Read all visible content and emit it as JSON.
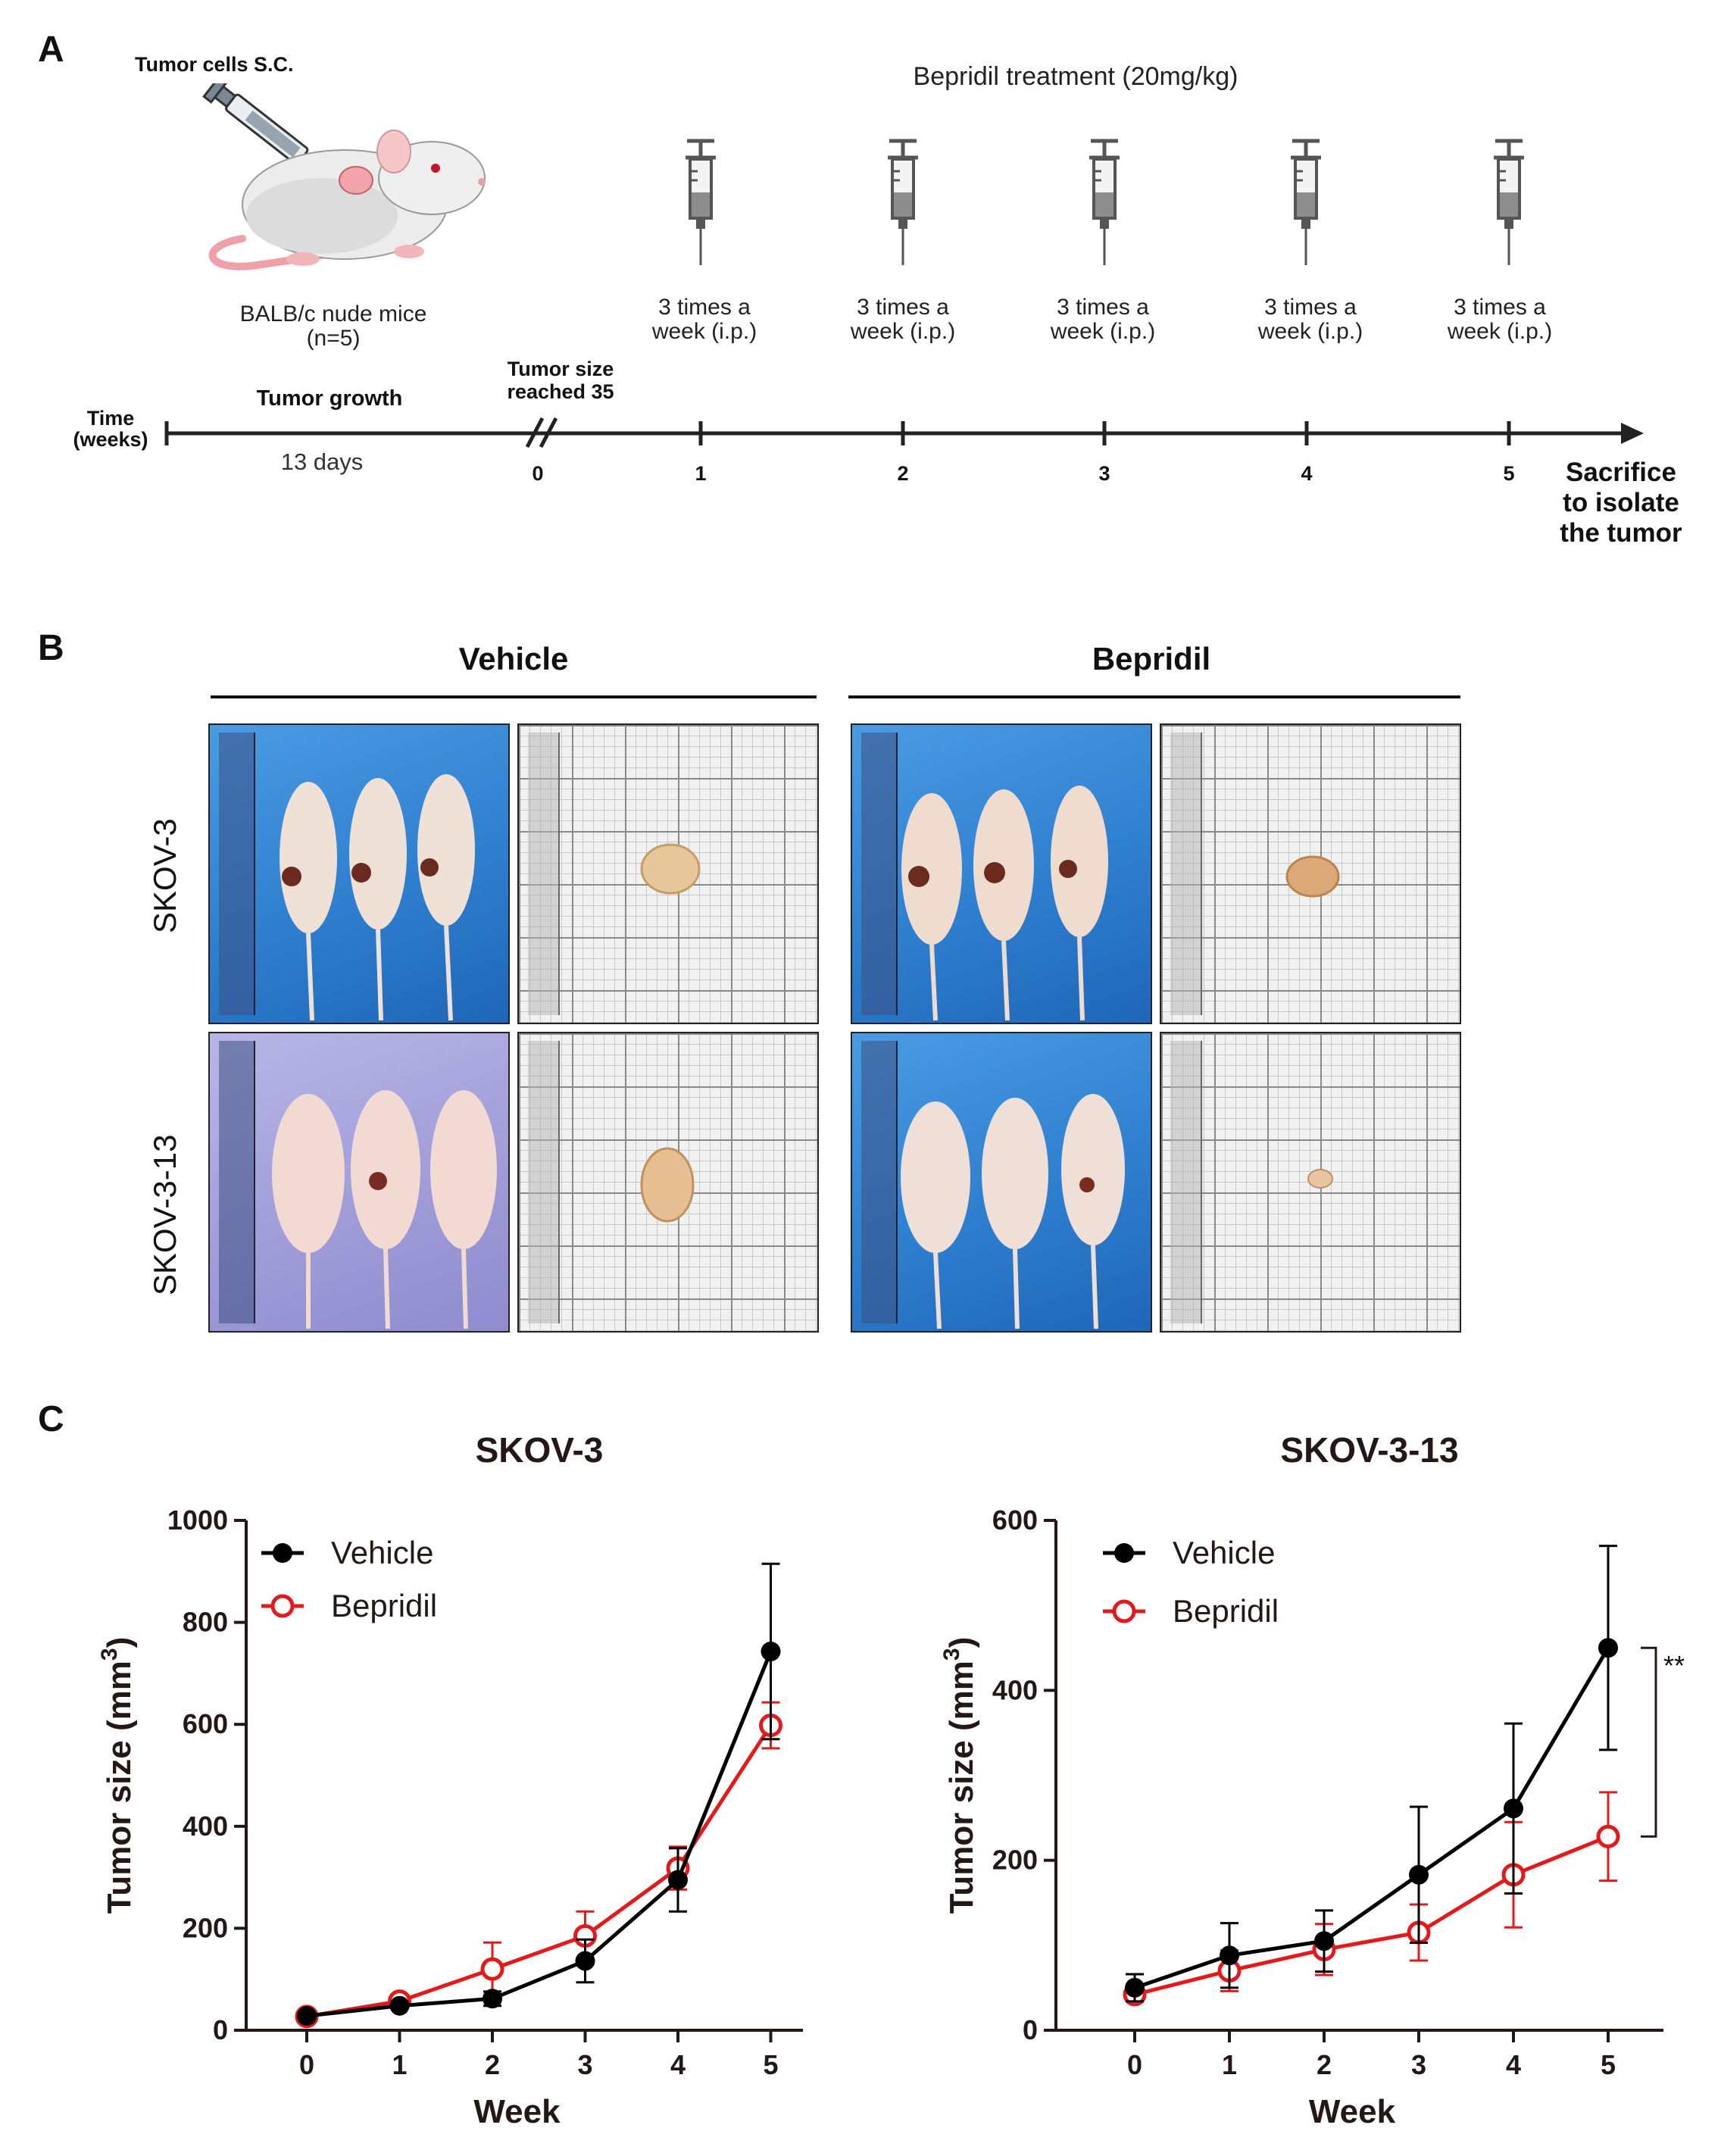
{
  "panel_a": {
    "letter": "A",
    "tumor_cells": "Tumor cells S.C.",
    "mice": "BALB/c nude mice",
    "n": "(n=5)",
    "treatment_title": "Bepridil treatment (20mg/kg)",
    "dose_line1": "3 times a",
    "dose_line2": "week (i.p.)",
    "time_label_1": "Time",
    "time_label_2": "(weeks)",
    "tumor_growth": "Tumor growth",
    "days": "13 days",
    "tumor_size_1": "Tumor size",
    "tumor_size_2": "reached 35",
    "ticks": [
      "0",
      "1",
      "2",
      "3",
      "4",
      "5"
    ],
    "end_1": "Sacrifice",
    "end_2": "to isolate",
    "end_3": "the tumor"
  },
  "panel_b": {
    "letter": "B",
    "vehicle": "Vehicle",
    "bepridil": "Bepridil",
    "row1": "SKOV-3",
    "row2": "SKOV-3-13"
  },
  "panel_c": {
    "letter": "C",
    "significance": "**"
  },
  "colors": {
    "vehicle": "#000000",
    "bepridil": "#e31a1c"
  },
  "chart_data": [
    {
      "type": "line",
      "title": "SKOV-3",
      "xlabel": "Week",
      "ylabel": "Tumor size (mm",
      "ylabel_sup": "3",
      "ylabel_close": ")",
      "x": [
        0,
        1,
        2,
        3,
        4,
        5
      ],
      "xticks": [
        "0",
        "1",
        "2",
        "3",
        "4",
        "5"
      ],
      "yticks": [
        "0",
        "200",
        "400",
        "600",
        "800",
        "1000"
      ],
      "ylim": [
        0,
        1000
      ],
      "series": [
        {
          "name": "Vehicle",
          "values": [
            28,
            48,
            62,
            136,
            295,
            743
          ],
          "err": [
            4,
            6,
            14,
            42,
            62,
            172
          ]
        },
        {
          "name": "Bepridil",
          "values": [
            27,
            57,
            120,
            185,
            318,
            598
          ],
          "err": [
            4,
            6,
            52,
            48,
            42,
            45
          ]
        }
      ]
    },
    {
      "type": "line",
      "title": "SKOV-3-13",
      "xlabel": "Week",
      "ylabel": "Tumor size (mm",
      "ylabel_sup": "3",
      "ylabel_close": ")",
      "x": [
        0,
        1,
        2,
        3,
        4,
        5
      ],
      "xticks": [
        "0",
        "1",
        "2",
        "3",
        "4",
        "5"
      ],
      "yticks": [
        "0",
        "200",
        "400",
        "600"
      ],
      "ylim": [
        0,
        600
      ],
      "series": [
        {
          "name": "Vehicle",
          "values": [
            50,
            88,
            105,
            183,
            261,
            450
          ],
          "err": [
            16,
            38,
            36,
            80,
            100,
            120
          ]
        },
        {
          "name": "Bepridil",
          "values": [
            42,
            70,
            95,
            115,
            183,
            228
          ],
          "err": [
            8,
            24,
            30,
            33,
            62,
            52
          ]
        }
      ]
    }
  ]
}
